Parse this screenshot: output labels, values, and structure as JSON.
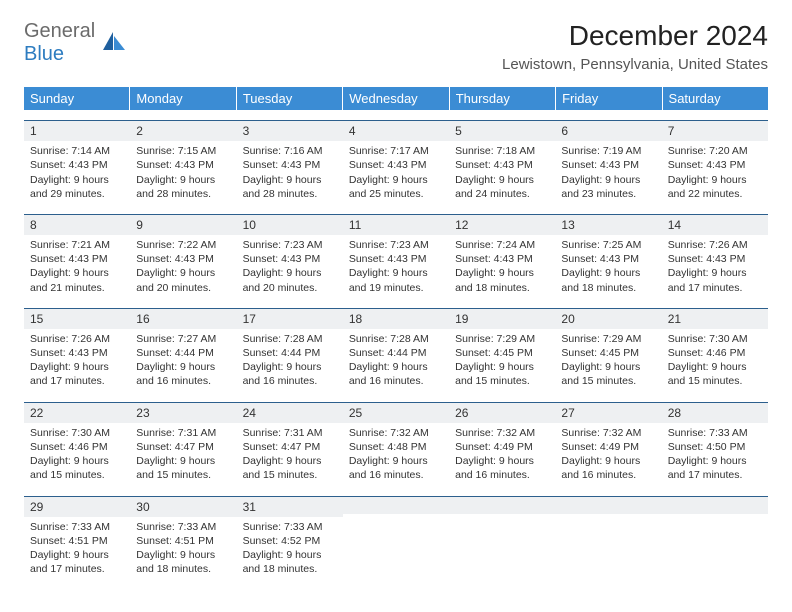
{
  "logo": {
    "text1": "General",
    "text2": "Blue"
  },
  "title": "December 2024",
  "location": "Lewistown, Pennsylvania, United States",
  "colors": {
    "header_bg": "#3b8cd4",
    "header_text": "#ffffff",
    "daynum_bg": "#eef0f2",
    "daynum_border": "#2c5f8d",
    "logo_gray": "#6b6b6b",
    "logo_blue": "#2d7cc0"
  },
  "columns": [
    "Sunday",
    "Monday",
    "Tuesday",
    "Wednesday",
    "Thursday",
    "Friday",
    "Saturday"
  ],
  "weeks": [
    [
      {
        "n": "1",
        "sr": "7:14 AM",
        "ss": "4:43 PM",
        "dl": "9 hours and 29 minutes."
      },
      {
        "n": "2",
        "sr": "7:15 AM",
        "ss": "4:43 PM",
        "dl": "9 hours and 28 minutes."
      },
      {
        "n": "3",
        "sr": "7:16 AM",
        "ss": "4:43 PM",
        "dl": "9 hours and 28 minutes."
      },
      {
        "n": "4",
        "sr": "7:17 AM",
        "ss": "4:43 PM",
        "dl": "9 hours and 25 minutes."
      },
      {
        "n": "5",
        "sr": "7:18 AM",
        "ss": "4:43 PM",
        "dl": "9 hours and 24 minutes."
      },
      {
        "n": "6",
        "sr": "7:19 AM",
        "ss": "4:43 PM",
        "dl": "9 hours and 23 minutes."
      },
      {
        "n": "7",
        "sr": "7:20 AM",
        "ss": "4:43 PM",
        "dl": "9 hours and 22 minutes."
      }
    ],
    [
      {
        "n": "8",
        "sr": "7:21 AM",
        "ss": "4:43 PM",
        "dl": "9 hours and 21 minutes."
      },
      {
        "n": "9",
        "sr": "7:22 AM",
        "ss": "4:43 PM",
        "dl": "9 hours and 20 minutes."
      },
      {
        "n": "10",
        "sr": "7:23 AM",
        "ss": "4:43 PM",
        "dl": "9 hours and 20 minutes."
      },
      {
        "n": "11",
        "sr": "7:23 AM",
        "ss": "4:43 PM",
        "dl": "9 hours and 19 minutes."
      },
      {
        "n": "12",
        "sr": "7:24 AM",
        "ss": "4:43 PM",
        "dl": "9 hours and 18 minutes."
      },
      {
        "n": "13",
        "sr": "7:25 AM",
        "ss": "4:43 PM",
        "dl": "9 hours and 18 minutes."
      },
      {
        "n": "14",
        "sr": "7:26 AM",
        "ss": "4:43 PM",
        "dl": "9 hours and 17 minutes."
      }
    ],
    [
      {
        "n": "15",
        "sr": "7:26 AM",
        "ss": "4:43 PM",
        "dl": "9 hours and 17 minutes."
      },
      {
        "n": "16",
        "sr": "7:27 AM",
        "ss": "4:44 PM",
        "dl": "9 hours and 16 minutes."
      },
      {
        "n": "17",
        "sr": "7:28 AM",
        "ss": "4:44 PM",
        "dl": "9 hours and 16 minutes."
      },
      {
        "n": "18",
        "sr": "7:28 AM",
        "ss": "4:44 PM",
        "dl": "9 hours and 16 minutes."
      },
      {
        "n": "19",
        "sr": "7:29 AM",
        "ss": "4:45 PM",
        "dl": "9 hours and 15 minutes."
      },
      {
        "n": "20",
        "sr": "7:29 AM",
        "ss": "4:45 PM",
        "dl": "9 hours and 15 minutes."
      },
      {
        "n": "21",
        "sr": "7:30 AM",
        "ss": "4:46 PM",
        "dl": "9 hours and 15 minutes."
      }
    ],
    [
      {
        "n": "22",
        "sr": "7:30 AM",
        "ss": "4:46 PM",
        "dl": "9 hours and 15 minutes."
      },
      {
        "n": "23",
        "sr": "7:31 AM",
        "ss": "4:47 PM",
        "dl": "9 hours and 15 minutes."
      },
      {
        "n": "24",
        "sr": "7:31 AM",
        "ss": "4:47 PM",
        "dl": "9 hours and 15 minutes."
      },
      {
        "n": "25",
        "sr": "7:32 AM",
        "ss": "4:48 PM",
        "dl": "9 hours and 16 minutes."
      },
      {
        "n": "26",
        "sr": "7:32 AM",
        "ss": "4:49 PM",
        "dl": "9 hours and 16 minutes."
      },
      {
        "n": "27",
        "sr": "7:32 AM",
        "ss": "4:49 PM",
        "dl": "9 hours and 16 minutes."
      },
      {
        "n": "28",
        "sr": "7:33 AM",
        "ss": "4:50 PM",
        "dl": "9 hours and 17 minutes."
      }
    ],
    [
      {
        "n": "29",
        "sr": "7:33 AM",
        "ss": "4:51 PM",
        "dl": "9 hours and 17 minutes."
      },
      {
        "n": "30",
        "sr": "7:33 AM",
        "ss": "4:51 PM",
        "dl": "9 hours and 18 minutes."
      },
      {
        "n": "31",
        "sr": "7:33 AM",
        "ss": "4:52 PM",
        "dl": "9 hours and 18 minutes."
      },
      null,
      null,
      null,
      null
    ]
  ],
  "labels": {
    "sunrise": "Sunrise: ",
    "sunset": "Sunset: ",
    "daylight": "Daylight: "
  }
}
